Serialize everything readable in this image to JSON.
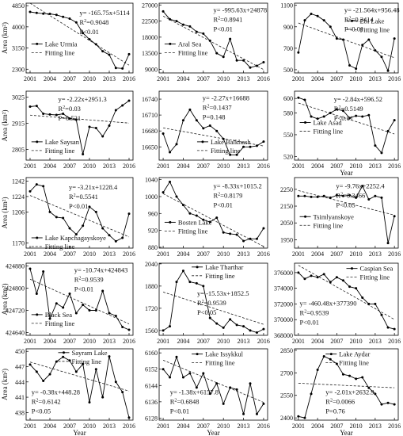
{
  "figure": {
    "y_axis_label": "Area (km²)",
    "x_axis_label": "Year"
  },
  "chart_data": [
    {
      "type": "line",
      "lake": "Lake Urmia",
      "fit_label": "Fitting line",
      "x": [
        2001,
        2002,
        2003,
        2004,
        2005,
        2006,
        2007,
        2008,
        2009,
        2010,
        2011,
        2012,
        2013,
        2014,
        2015,
        2016
      ],
      "values": [
        4600,
        4560,
        4530,
        4520,
        4480,
        4400,
        4330,
        4180,
        3750,
        3500,
        3300,
        3020,
        2880,
        2350,
        2330,
        2900
      ],
      "ylim": [
        2150,
        4950
      ],
      "yticks": [
        2300,
        3150,
        4000,
        4850
      ],
      "xticks": [
        2001,
        2004,
        2007,
        2010,
        2013,
        2016
      ],
      "slope": -165.75,
      "intercept": 5114,
      "eq": "y= -165.75x+5114",
      "r2": "R²=0.9048",
      "p": "P<0.01"
    },
    {
      "type": "line",
      "lake": "Aral Sea",
      "fit_label": "Fitting line",
      "x": [
        2001,
        2002,
        2003,
        2004,
        2005,
        2006,
        2007,
        2008,
        2009,
        2010,
        2011,
        2012,
        2013,
        2014,
        2015,
        2016
      ],
      "values": [
        25200,
        23000,
        22500,
        21500,
        21000,
        19500,
        19000,
        17000,
        13500,
        12500,
        17500,
        11500,
        11500,
        9500,
        10000,
        11000
      ],
      "ylim": [
        8000,
        27500
      ],
      "yticks": [
        9000,
        13500,
        18000,
        22500,
        27000
      ],
      "xticks": [
        2001,
        2004,
        2007,
        2010,
        2013,
        2016
      ],
      "slope": -995.63,
      "intercept": 24878,
      "eq": "y= -995.63x+24878",
      "r2": "R²=0.8941",
      "p": "P<0.01"
    },
    {
      "type": "line",
      "lake": "Ebi Lake",
      "fit_label": "Fitting line",
      "x": [
        2001,
        2002,
        2003,
        2004,
        2005,
        2006,
        2007,
        2008,
        2009,
        2010,
        2011,
        2012,
        2013,
        2014,
        2015,
        2016
      ],
      "values": [
        660,
        960,
        1020,
        1000,
        960,
        900,
        790,
        780,
        540,
        510,
        730,
        780,
        680,
        620,
        490,
        790
      ],
      "ylim": [
        470,
        1120
      ],
      "yticks": [
        500,
        700,
        900,
        1100
      ],
      "xticks": [
        2001,
        2004,
        2007,
        2010,
        2013,
        2016
      ],
      "slope": -21.564,
      "intercept": 956.48,
      "eq": "y= -21.564x+956.48",
      "r2": "R²=0.3414",
      "p": "P<0.01"
    },
    {
      "type": "line",
      "lake": "Lake Saysan",
      "fit_label": "Fitting line",
      "x": [
        2001,
        2002,
        2003,
        2004,
        2005,
        2006,
        2007,
        2008,
        2009,
        2010,
        2011,
        2012,
        2013,
        2014,
        2015,
        2016
      ],
      "values": [
        2985,
        2988,
        2955,
        2952,
        2950,
        2955,
        2935,
        2930,
        2785,
        2900,
        2895,
        2860,
        2905,
        2970,
        2990,
        3010
      ],
      "ylim": [
        2760,
        3050
      ],
      "yticks": [
        2805,
        2915,
        3025
      ],
      "xticks": [
        2001,
        2004,
        2007,
        2010,
        2013,
        2016
      ],
      "slope": -2.22,
      "intercept": 2951.3,
      "eq": "y= -2.22x+2951.3",
      "r2": "R²=0.03",
      "p": "P=0.521"
    },
    {
      "type": "line",
      "lake": "Lake Balkhash",
      "fit_label": "Fitting line",
      "x": [
        2001,
        2002,
        2003,
        2004,
        2005,
        2006,
        2007,
        2008,
        2009,
        2010,
        2011,
        2012,
        2013,
        2014,
        2015,
        2016
      ],
      "values": [
        16675,
        16640,
        16655,
        16700,
        16720,
        16700,
        16685,
        16690,
        16680,
        16665,
        16635,
        16635,
        16650,
        16650,
        16652,
        16660
      ],
      "ylim": [
        16625,
        16755
      ],
      "yticks": [
        16650,
        16680,
        16710,
        16740
      ],
      "xticks": [
        2001,
        2004,
        2007,
        2010,
        2013,
        2016
      ],
      "slope": -2.27,
      "intercept": 16688,
      "eq": "y= -2.27x+16688",
      "r2": "R²=0.1437",
      "p": "P=0.148"
    },
    {
      "type": "line",
      "lake": "Lake Asad",
      "fit_label": "Fitting line",
      "x": [
        2001,
        2002,
        2003,
        2004,
        2005,
        2006,
        2007,
        2008,
        2009,
        2010,
        2011,
        2012,
        2013,
        2014,
        2015,
        2016
      ],
      "values": [
        601,
        598,
        575,
        572,
        575,
        580,
        585,
        583,
        573,
        576,
        575,
        577,
        535,
        525,
        555,
        570
      ],
      "ylim": [
        515,
        610
      ],
      "yticks": [
        520,
        550,
        580,
        600
      ],
      "xticks": [
        2001,
        2004,
        2007,
        2010,
        2013,
        2016
      ],
      "slope": -2.84,
      "intercept": 596.52,
      "eq": "y= -2.84x+596.52",
      "r2": "R²=0.5149",
      "p": "P<0.01"
    },
    {
      "type": "line",
      "lake": "Lake Kapchagayskoye",
      "fit_label": "Fitting line",
      "x": [
        2001,
        2002,
        2003,
        2004,
        2005,
        2006,
        2007,
        2008,
        2009,
        2010,
        2011,
        2012,
        2013,
        2014,
        2015,
        2016
      ],
      "values": [
        1230,
        1238,
        1236,
        1206,
        1200,
        1199,
        1187,
        1180,
        1190,
        1212,
        1206,
        1187,
        1179,
        1172,
        1176,
        1204
      ],
      "ylim": [
        1164,
        1246
      ],
      "yticks": [
        1170,
        1206,
        1224,
        1242
      ],
      "xticks": [
        2001,
        2004,
        2007,
        2010,
        2013,
        2016
      ],
      "slope": -3.21,
      "intercept": 1228.4,
      "eq": "y= -3.21x+1228.4",
      "r2": "R²=0.5541",
      "p": "P<0.01"
    },
    {
      "type": "line",
      "lake": "Bosten Lake",
      "fit_label": "Fitting line",
      "x": [
        2001,
        2002,
        2003,
        2004,
        2005,
        2006,
        2007,
        2008,
        2009,
        2010,
        2011,
        2012,
        2013,
        2014,
        2015,
        2016
      ],
      "values": [
        1010,
        1035,
        1000,
        980,
        960,
        955,
        945,
        940,
        950,
        915,
        912,
        910,
        895,
        900,
        900,
        925
      ],
      "ylim": [
        878,
        1045
      ],
      "yticks": [
        880,
        920,
        960,
        1000,
        1040
      ],
      "xticks": [
        2001,
        2004,
        2007,
        2010,
        2013,
        2016
      ],
      "slope": -8.33,
      "intercept": 1015.2,
      "eq": "y= -8.33x+1015.2",
      "r2": "R²=0.8179",
      "p": "P<0.01"
    },
    {
      "type": "line",
      "lake": "Tsimlyanskoye",
      "fit_label": "Fitting line",
      "x": [
        2001,
        2002,
        2003,
        2004,
        2005,
        2006,
        2007,
        2008,
        2009,
        2010,
        2011,
        2012,
        2013,
        2014,
        2015,
        2016
      ],
      "values": [
        2210,
        2210,
        2205,
        2205,
        2210,
        2200,
        2215,
        2210,
        2215,
        2200,
        2270,
        2190,
        2210,
        2200,
        1930,
        2090
      ],
      "ylim": [
        1900,
        2320
      ],
      "yticks": [
        1950,
        2050,
        2150,
        2250
      ],
      "xticks": [
        2001,
        2004,
        2007,
        2010,
        2013,
        2016
      ],
      "slope": -9.76,
      "intercept": 2252.4,
      "eq": "y= -9.76x+2252.4",
      "r2": "R²=0.3466",
      "p": "P<0.05"
    },
    {
      "type": "line",
      "lake": "Black Sea",
      "fit_label": "Fitting line",
      "x": [
        2001,
        2002,
        2003,
        2004,
        2005,
        2006,
        2007,
        2008,
        2009,
        2010,
        2011,
        2012,
        2013,
        2014,
        2015,
        2016
      ],
      "values": [
        424870,
        424780,
        424860,
        424690,
        424745,
        424730,
        424780,
        424710,
        424740,
        424720,
        424720,
        424790,
        424710,
        424700,
        424660,
        424650
      ],
      "ylim": [
        424630,
        424890
      ],
      "yticks": [
        424640,
        424720,
        424800,
        424880
      ],
      "xticks": [
        2001,
        2004,
        2007,
        2010,
        2013,
        2016
      ],
      "slope": -10.74,
      "intercept": 424843,
      "eq": "y= -10.74x+424843",
      "r2": "R²=0.9539",
      "p": "P<0.01"
    },
    {
      "type": "line",
      "lake": "Lake Tharthar",
      "fit_label": "Fitting line",
      "x": [
        2001,
        2002,
        2003,
        2004,
        2005,
        2006,
        2007,
        2008,
        2009,
        2010,
        2011,
        2012,
        2013,
        2014,
        2015,
        2016
      ],
      "values": [
        1560,
        1590,
        1910,
        1990,
        1910,
        1900,
        1880,
        1650,
        1610,
        1580,
        1640,
        1600,
        1590,
        1560,
        1545,
        1570
      ],
      "ylim": [
        1525,
        2045
      ],
      "yticks": [
        1560,
        1720,
        1880,
        2040
      ],
      "xticks": [
        2001,
        2004,
        2007,
        2010,
        2013,
        2016
      ],
      "slope": -15.53,
      "intercept": 1852.5,
      "eq": "y= -15.53x+1852.5",
      "r2": "R²=0.9539",
      "p": "P<0.05"
    },
    {
      "type": "line",
      "lake": "Caspian Sea",
      "fit_label": "Fitting line",
      "x": [
        2001,
        2002,
        2003,
        2004,
        2005,
        2006,
        2007,
        2008,
        2009,
        2010,
        2011,
        2012,
        2013,
        2014,
        2015,
        2016
      ],
      "values": [
        376000,
        375200,
        375600,
        375400,
        375800,
        374800,
        375400,
        375000,
        374200,
        374000,
        372800,
        372000,
        372000,
        370600,
        369000,
        368800
      ],
      "ylim": [
        368000,
        377200
      ],
      "yticks": [
        368000,
        370000,
        372000,
        374000,
        376000
      ],
      "xticks": [
        2001,
        2004,
        2007,
        2010,
        2013,
        2016
      ],
      "slope": -460.48,
      "intercept": 377390,
      "eq": "y= -460.48x+377390",
      "r2": "R²=0.9539",
      "p": "P<0.01"
    },
    {
      "type": "line",
      "lake": "Sayram Lake",
      "fit_label": "Fitting line",
      "x": [
        2001,
        2002,
        2003,
        2004,
        2005,
        2006,
        2007,
        2008,
        2009,
        2010,
        2011,
        2012,
        2013,
        2014,
        2015,
        2016
      ],
      "values": [
        447.4,
        446.0,
        444.2,
        445.5,
        448.0,
        448.9,
        448.2,
        446.0,
        447.5,
        440.0,
        446.5,
        441.0,
        449.0,
        444.0,
        442.0,
        437.0
      ],
      "ylim": [
        436.5,
        450.5
      ],
      "yticks": [
        438,
        441,
        444,
        447,
        450
      ],
      "xticks": [
        2001,
        2004,
        2007,
        2010,
        2013,
        2016
      ],
      "slope": -0.38,
      "intercept": 448.28,
      "eq": "y= -0.38x+448.28",
      "r2": "R²=0.6142",
      "p": "P<0.05"
    },
    {
      "type": "line",
      "lake": "Lake Issykkul",
      "fit_label": "Fitting line",
      "x": [
        2001,
        2002,
        2003,
        2004,
        2005,
        2006,
        2007,
        2008,
        2009,
        2010,
        2011,
        2012,
        2013,
        2014,
        2015,
        2016
      ],
      "values": [
        6152,
        6148,
        6158,
        6148,
        6150,
        6143,
        6150,
        6140,
        6145,
        6135,
        6143,
        6142,
        6130,
        6145,
        6130,
        6135
      ],
      "ylim": [
        6127,
        6162
      ],
      "yticks": [
        6128,
        6136,
        6144,
        6152,
        6160
      ],
      "xticks": [
        2001,
        2004,
        2007,
        2010,
        2013,
        2016
      ],
      "slope": -1.38,
      "intercept": 6157.8,
      "eq": "y= -1.38x+6157.8",
      "r2": "R²=0.6848",
      "p": "P<0.01"
    },
    {
      "type": "line",
      "lake": "Lake Aydar",
      "fit_label": "Fitting line",
      "x": [
        2001,
        2002,
        2003,
        2004,
        2005,
        2006,
        2007,
        2008,
        2009,
        2010,
        2011,
        2012,
        2013,
        2014,
        2015,
        2016
      ],
      "values": [
        2410,
        2400,
        2560,
        2720,
        2810,
        2790,
        2760,
        2690,
        2680,
        2660,
        2670,
        2600,
        2560,
        2490,
        2500,
        2490
      ],
      "ylim": [
        2385,
        2860
      ],
      "yticks": [
        2400,
        2550,
        2700,
        2850
      ],
      "xticks": [
        2001,
        2004,
        2007,
        2010,
        2013,
        2016
      ],
      "slope": -2.01,
      "intercept": 2632.9,
      "eq": "y= -2.01x+2632.9",
      "r2": "R²=0.0066",
      "p": "P=0.76"
    }
  ]
}
